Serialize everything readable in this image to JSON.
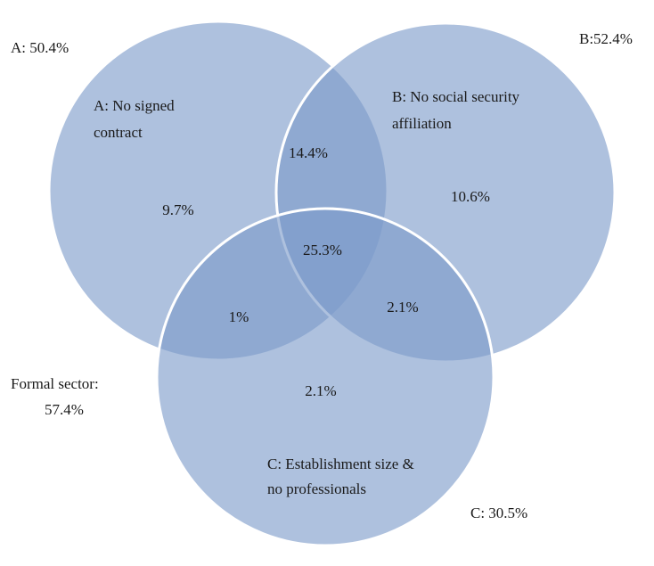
{
  "sets": [
    {
      "label_lines": [
        "A: No signed",
        "contract"
      ],
      "total": "A: 50.4%"
    },
    {
      "label_lines": [
        "B: No social security",
        "affiliation"
      ],
      "total": "B:52.4%"
    },
    {
      "label_lines": [
        "C: Establishment size &",
        "no professionals"
      ],
      "total": "C: 30.5%"
    }
  ],
  "regions": {
    "a_only": "9.7%",
    "b_only": "10.6%",
    "c_only": "2.1%",
    "a_b": "14.4%",
    "a_c": "1%",
    "b_c": "2.1%",
    "a_b_c": "25.3%"
  },
  "outside": {
    "label_lines": [
      "Formal sector:",
      "57.4%"
    ]
  }
}
